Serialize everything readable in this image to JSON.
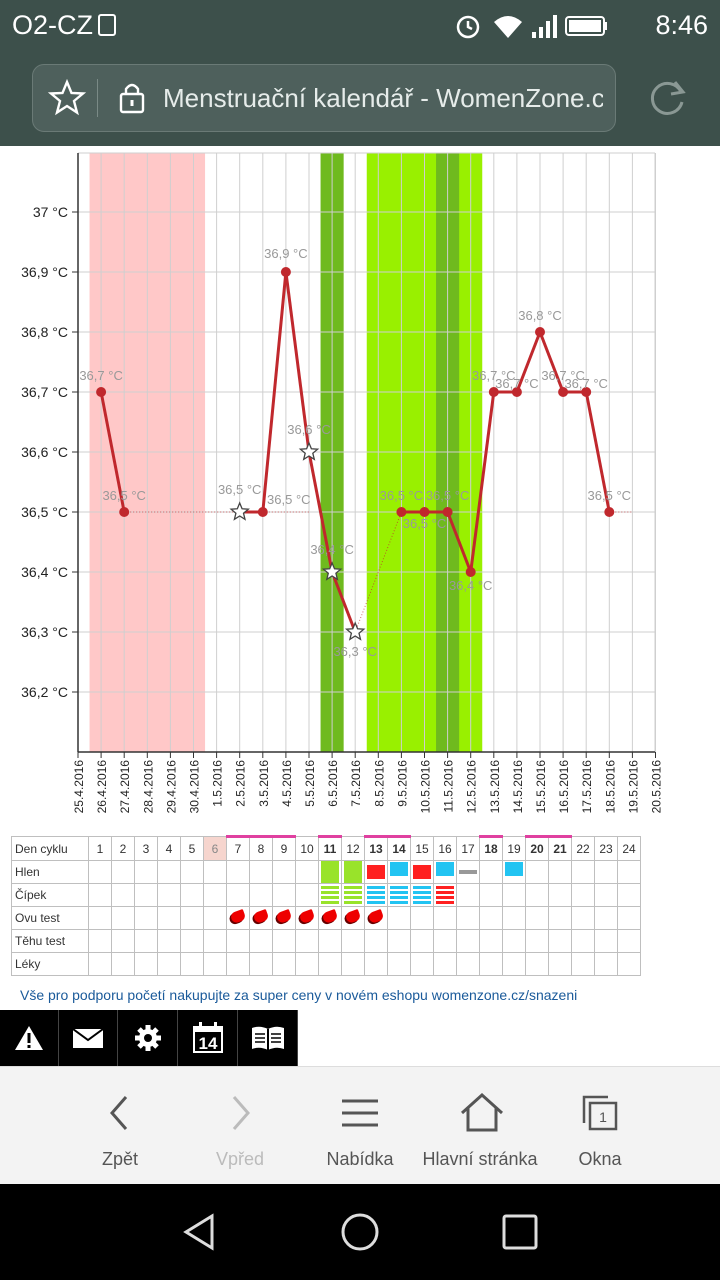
{
  "status_bar": {
    "carrier": "O2-CZ",
    "time": "8:46",
    "icons": [
      "alarm-icon",
      "wifi-icon",
      "signal-icon",
      "battery-icon"
    ]
  },
  "browser": {
    "page_title": "Menstruační kalendář - WomenZone.c",
    "url_icons": [
      "star-icon",
      "lock-icon",
      "reload-icon"
    ]
  },
  "chart_data": {
    "type": "line",
    "x_labels": [
      "25.4.2016",
      "26.4.2016",
      "27.4.2016",
      "28.4.2016",
      "29.4.2016",
      "30.4.2016",
      "1.5.2016",
      "2.5.2016",
      "3.5.2016",
      "4.5.2016",
      "5.5.2016",
      "6.5.2016",
      "7.5.2016",
      "8.5.2016",
      "9.5.2016",
      "10.5.2016",
      "11.5.2016",
      "12.5.2016",
      "13.5.2016",
      "14.5.2016",
      "15.5.2016",
      "16.5.2016",
      "17.5.2016",
      "18.5.2016",
      "19.5.2016",
      "20.5.2016"
    ],
    "y_ticks": [
      "37 °C",
      "36,9 °C",
      "36,8 °C",
      "36,7 °C",
      "36,6 °C",
      "36,5 °C",
      "36,4 °C",
      "36,3 °C",
      "36,2 °C"
    ],
    "y_tick_values": [
      37.0,
      36.9,
      36.8,
      36.7,
      36.6,
      36.5,
      36.4,
      36.3,
      36.2
    ],
    "ylim": [
      36.1,
      37.1
    ],
    "points": [
      {
        "day": 1,
        "value": 36.7,
        "label": "36,7 °C",
        "marker": "dot"
      },
      {
        "day": 2,
        "value": 36.5,
        "label": "36,5 °C",
        "marker": "dot"
      },
      {
        "day": 7,
        "value": 36.5,
        "label": "36,5 °C",
        "marker": "star"
      },
      {
        "day": 8,
        "value": 36.5,
        "label": "36,5 °C",
        "marker": "dot"
      },
      {
        "day": 9,
        "value": 36.9,
        "label": "36,9 °C",
        "marker": "dot"
      },
      {
        "day": 10,
        "value": 36.6,
        "label": "36,6 °C",
        "marker": "star"
      },
      {
        "day": 11,
        "value": 36.4,
        "label": "36,4 °C",
        "marker": "star"
      },
      {
        "day": 12,
        "value": 36.3,
        "label": "36,3 °C",
        "marker": "star"
      },
      {
        "day": 14,
        "value": 36.5,
        "label": "36,5 °C",
        "marker": "dot"
      },
      {
        "day": 15,
        "value": 36.5,
        "label": "36,5 °C",
        "marker": "dot"
      },
      {
        "day": 16,
        "value": 36.5,
        "label": "36,5 °C",
        "marker": "dot"
      },
      {
        "day": 17,
        "value": 36.4,
        "label": "36,4 °C",
        "marker": "dot"
      },
      {
        "day": 18,
        "value": 36.7,
        "label": "36,7 °C",
        "marker": "dot"
      },
      {
        "day": 19,
        "value": 36.7,
        "label": "36,7 °C",
        "marker": "dot"
      },
      {
        "day": 20,
        "value": 36.8,
        "label": "36,8 °C",
        "marker": "dot"
      },
      {
        "day": 21,
        "value": 36.7,
        "label": "36,7 °C",
        "marker": "dot"
      },
      {
        "day": 22,
        "value": 36.7,
        "label": "36,7 °C",
        "marker": "dot"
      },
      {
        "day": 23,
        "value": 36.5,
        "label": "36,5 °C",
        "marker": "dot"
      }
    ],
    "bands": [
      {
        "from_day": 0.5,
        "to_day": 5.5,
        "kind": "menstruation",
        "color": "#ffc8c8"
      },
      {
        "from_day": 10.5,
        "to_day": 11.5,
        "kind": "fertile",
        "color": "#6fba1e"
      },
      {
        "from_day": 12.5,
        "to_day": 17.5,
        "kind": "fertile",
        "color": "#99f000"
      },
      {
        "from_day": 15.5,
        "to_day": 16.5,
        "kind": "ovulation",
        "color": "#6fba1e"
      }
    ],
    "line_color": "#c0282d",
    "grid": true
  },
  "cycle_table": {
    "header_label": "Den cyklu",
    "days": [
      "1",
      "2",
      "3",
      "4",
      "5",
      "6",
      "7",
      "8",
      "9",
      "10",
      "11",
      "12",
      "13",
      "14",
      "15",
      "16",
      "17",
      "18",
      "19",
      "20",
      "21",
      "22",
      "23",
      "24"
    ],
    "marked_days": [
      "7",
      "8",
      "9",
      "11",
      "13",
      "14",
      "18",
      "20",
      "21"
    ],
    "bold_days": [
      "11",
      "13",
      "14",
      "18",
      "20",
      "21"
    ],
    "today": "6",
    "rows": [
      {
        "label": "Hlen",
        "key": "hlen"
      },
      {
        "label": "Čípek",
        "key": "cipek"
      },
      {
        "label": "Ovu test",
        "key": "ovu"
      },
      {
        "label": "Těhu test",
        "key": "tehu"
      },
      {
        "label": "Léky",
        "key": "leky"
      }
    ],
    "hlen": {
      "11": "green",
      "12": "green",
      "13": "red",
      "14": "blue",
      "15": "red",
      "16": "blue",
      "17": "gray",
      "19": "blue"
    },
    "cipek": {
      "11": "green-lines",
      "12": "green-lines",
      "13": "blue-lines",
      "14": "blue-lines",
      "15": "blue-lines",
      "16": "red-lines"
    },
    "ovu": [
      "7",
      "8",
      "9",
      "10",
      "11",
      "12",
      "13"
    ]
  },
  "promo_text": "Vše pro podporu početí nakupujte za super ceny v novém eshopu womenzone.cz/snazeni",
  "toolbar_icons": [
    "warning-icon",
    "mail-icon",
    "settings-icon",
    "calendar-icon",
    "book-icon"
  ],
  "calendar_day": "14",
  "browser_nav": [
    {
      "label": "Zpět",
      "icon": "back-arrow-icon"
    },
    {
      "label": "Vpřed",
      "icon": "forward-arrow-icon"
    },
    {
      "label": "Nabídka",
      "icon": "menu-icon"
    },
    {
      "label": "Hlavní stránka",
      "icon": "home-icon"
    },
    {
      "label": "Okna",
      "icon": "tabs-icon"
    }
  ],
  "tabs_count": "1"
}
